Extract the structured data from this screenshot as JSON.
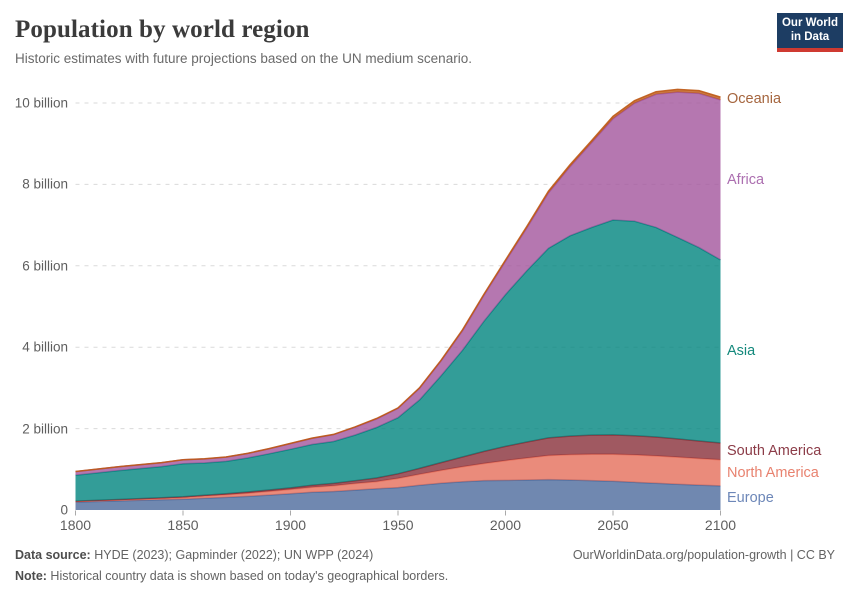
{
  "header": {
    "title": "Population by world region",
    "subtitle": "Historic estimates with future projections based on the UN medium scenario.",
    "logo": {
      "line1": "Our World",
      "line2": "in Data"
    }
  },
  "footer": {
    "source_label": "Data source:",
    "source_text": " HYDE (2023); Gapminder (2022); UN WPP (2024)",
    "link_text": "OurWorldinData.org/population-growth | CC BY",
    "note_label": "Note:",
    "note_text": " Historical country data is shown based on today's geographical borders."
  },
  "chart_data": {
    "type": "area",
    "stacked": true,
    "title": "Population by world region",
    "unit": "billion people",
    "xlim": [
      1800,
      2100
    ],
    "ylim": [
      0,
      10.4
    ],
    "grid": "horizontal-dashed",
    "legend": "labels-right-of-plot",
    "fill_opacity": 0.8,
    "x_ticks": [
      1800,
      1850,
      1900,
      1950,
      2000,
      2050,
      2100
    ],
    "y_ticks": [
      {
        "v": 0,
        "label": "0"
      },
      {
        "v": 2,
        "label": "2 billion"
      },
      {
        "v": 4,
        "label": "4 billion"
      },
      {
        "v": 6,
        "label": "6 billion"
      },
      {
        "v": 8,
        "label": "8 billion"
      },
      {
        "v": 10,
        "label": "10 billion"
      }
    ],
    "x_years": [
      1800,
      1820,
      1840,
      1850,
      1860,
      1870,
      1880,
      1890,
      1900,
      1910,
      1920,
      1930,
      1940,
      1950,
      1960,
      1970,
      1980,
      1990,
      2000,
      2010,
      2020,
      2030,
      2040,
      2050,
      2060,
      2070,
      2080,
      2090,
      2100
    ],
    "series": [
      {
        "name": "Europe",
        "color": "#4C6A9C",
        "label_color": "#6D87B8",
        "values": [
          0.195,
          0.224,
          0.25,
          0.265,
          0.288,
          0.31,
          0.334,
          0.366,
          0.401,
          0.437,
          0.454,
          0.49,
          0.52,
          0.55,
          0.606,
          0.657,
          0.694,
          0.722,
          0.727,
          0.736,
          0.746,
          0.736,
          0.723,
          0.704,
          0.681,
          0.657,
          0.634,
          0.611,
          0.593
        ]
      },
      {
        "name": "North America",
        "color": "#E56E5A",
        "label_color": "#E8826F",
        "values": [
          0.015,
          0.023,
          0.035,
          0.043,
          0.055,
          0.066,
          0.08,
          0.092,
          0.105,
          0.124,
          0.142,
          0.16,
          0.178,
          0.226,
          0.27,
          0.315,
          0.368,
          0.421,
          0.486,
          0.542,
          0.594,
          0.625,
          0.648,
          0.665,
          0.672,
          0.672,
          0.665,
          0.654,
          0.64
        ]
      },
      {
        "name": "South America",
        "color": "#883039",
        "label_color": "#8C3C48",
        "values": [
          0.009,
          0.012,
          0.016,
          0.018,
          0.021,
          0.024,
          0.028,
          0.033,
          0.038,
          0.048,
          0.058,
          0.071,
          0.088,
          0.113,
          0.147,
          0.192,
          0.241,
          0.297,
          0.349,
          0.393,
          0.431,
          0.455,
          0.47,
          0.476,
          0.473,
          0.464,
          0.449,
          0.431,
          0.412
        ]
      },
      {
        "name": "Asia",
        "color": "#00847E",
        "label_color": "#14897C",
        "values": [
          0.635,
          0.71,
          0.765,
          0.809,
          0.79,
          0.795,
          0.835,
          0.89,
          0.947,
          1.0,
          1.03,
          1.12,
          1.24,
          1.379,
          1.68,
          2.13,
          2.62,
          3.2,
          3.73,
          4.21,
          4.66,
          4.92,
          5.1,
          5.28,
          5.27,
          5.15,
          4.95,
          4.75,
          4.5
        ]
      },
      {
        "name": "Africa",
        "color": "#A2559C",
        "label_color": "#AC6FB0",
        "values": [
          0.09,
          0.093,
          0.096,
          0.098,
          0.1,
          0.104,
          0.11,
          0.123,
          0.14,
          0.15,
          0.165,
          0.19,
          0.21,
          0.228,
          0.284,
          0.365,
          0.481,
          0.638,
          0.819,
          1.055,
          1.361,
          1.7,
          2.08,
          2.49,
          2.9,
          3.27,
          3.57,
          3.79,
          3.93
        ]
      },
      {
        "name": "Oceania",
        "color": "#BE5915",
        "label_color": "#A5653E",
        "values": [
          0.002,
          0.002,
          0.002,
          0.002,
          0.003,
          0.004,
          0.004,
          0.005,
          0.006,
          0.007,
          0.009,
          0.01,
          0.011,
          0.013,
          0.016,
          0.02,
          0.023,
          0.027,
          0.031,
          0.037,
          0.044,
          0.049,
          0.053,
          0.057,
          0.061,
          0.064,
          0.066,
          0.068,
          0.069
        ]
      }
    ]
  }
}
